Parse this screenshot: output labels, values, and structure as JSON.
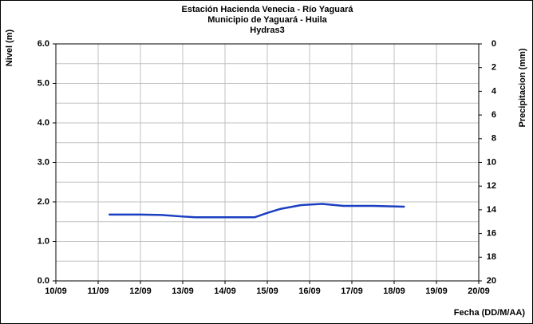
{
  "chart_data": {
    "type": "line",
    "title": "Estación Hacienda Venecia - Río  Yaguará",
    "subtitle": "Municipio de Yaguará - Huila",
    "station_code": "Hydras3",
    "y_label": "Nivel (m)",
    "y2_label": "Precipitacion (mm)",
    "x_label": "Fecha (DD/M/AA)",
    "xlim": [
      10,
      20
    ],
    "xticks": [
      {
        "value": 10,
        "label": "10/09"
      },
      {
        "value": 11,
        "label": "11/09"
      },
      {
        "value": 12,
        "label": "12/09"
      },
      {
        "value": 13,
        "label": "13/09"
      },
      {
        "value": 14,
        "label": "14/09"
      },
      {
        "value": 15,
        "label": "15/09"
      },
      {
        "value": 16,
        "label": "16/09"
      },
      {
        "value": 17,
        "label": "17/09"
      },
      {
        "value": 18,
        "label": "18/09"
      },
      {
        "value": 19,
        "label": "19/09"
      },
      {
        "value": 20,
        "label": "20/09"
      }
    ],
    "ylim": [
      0,
      6
    ],
    "yticks": [
      {
        "value": 0,
        "label": "0.0"
      },
      {
        "value": 1,
        "label": "1.0"
      },
      {
        "value": 2,
        "label": "2.0"
      },
      {
        "value": 3,
        "label": "3.0"
      },
      {
        "value": 4,
        "label": "4.0"
      },
      {
        "value": 5,
        "label": "5.0"
      },
      {
        "value": 6,
        "label": "6.0"
      }
    ],
    "y_minor_grid": [
      0.5,
      1.5,
      2.5,
      3.5,
      4.5,
      5.5
    ],
    "y2lim": [
      20,
      0
    ],
    "y2ticks": [
      0,
      2,
      4,
      6,
      8,
      10,
      12,
      14,
      16,
      18,
      20
    ],
    "grid": true,
    "series": [
      {
        "name": "Nivel",
        "color": "#1a3fc0",
        "x": [
          11.25,
          12.0,
          12.5,
          13.0,
          13.3,
          14.0,
          14.7,
          15.0,
          15.3,
          15.8,
          16.3,
          16.8,
          17.5,
          18.25
        ],
        "values": [
          1.68,
          1.68,
          1.67,
          1.63,
          1.61,
          1.61,
          1.61,
          1.72,
          1.82,
          1.92,
          1.95,
          1.9,
          1.9,
          1.88
        ]
      }
    ]
  }
}
